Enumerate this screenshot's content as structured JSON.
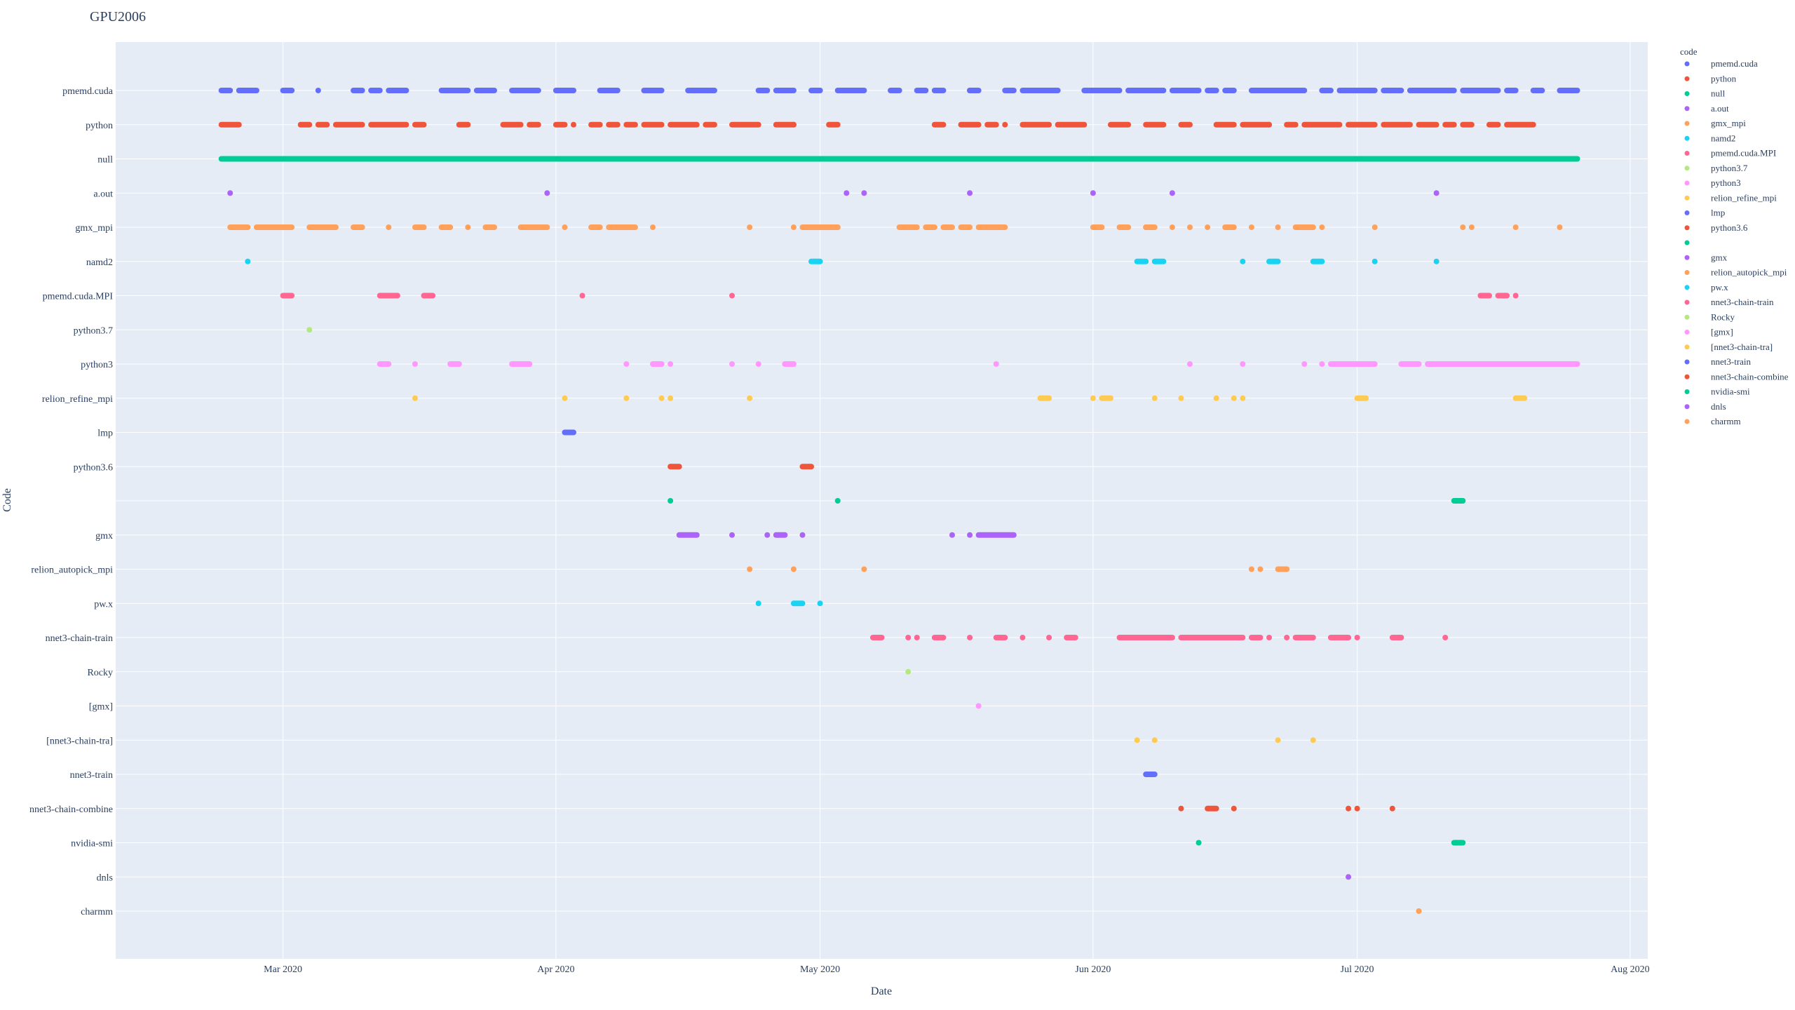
{
  "chart_data": {
    "type": "scatter",
    "title": "GPU2006",
    "xlabel": "Date",
    "ylabel": "Code",
    "legend_title": "code",
    "legend_position": "right",
    "grid": true,
    "x_range": [
      "2020-02-11",
      "2020-08-03"
    ],
    "x_ticks": [
      {
        "date": "2020-03-01",
        "label": "Mar 2020"
      },
      {
        "date": "2020-04-01",
        "label": "Apr 2020"
      },
      {
        "date": "2020-05-01",
        "label": "May 2020"
      },
      {
        "date": "2020-06-01",
        "label": "Jun 2020"
      },
      {
        "date": "2020-07-01",
        "label": "Jul 2020"
      },
      {
        "date": "2020-08-01",
        "label": "Aug 2020"
      }
    ],
    "categories": [
      "pmemd.cuda",
      "python",
      "null",
      "a.out",
      "gmx_mpi",
      "namd2",
      "pmemd.cuda.MPI",
      "python3.7",
      "python3",
      "relion_refine_mpi",
      "lmp",
      "python3.6",
      "",
      "gmx",
      "relion_autopick_mpi",
      "pw.x",
      "nnet3-chain-train",
      "Rocky",
      "[gmx]",
      "[nnet3-chain-tra]",
      "nnet3-train",
      "nnet3-chain-combine",
      "nvidia-smi",
      "dnls",
      "charmm"
    ],
    "series": [
      {
        "name": "pmemd.cuda",
        "color": "#636efa",
        "ranges": [
          [
            "2020-02-23",
            "2020-02-24"
          ],
          [
            "2020-02-25",
            "2020-02-27"
          ],
          [
            "2020-03-01",
            "2020-03-02"
          ],
          [
            "2020-03-09",
            "2020-03-10"
          ],
          [
            "2020-03-11",
            "2020-03-12"
          ],
          [
            "2020-03-13",
            "2020-03-15"
          ],
          [
            "2020-03-19",
            "2020-03-22"
          ],
          [
            "2020-03-23",
            "2020-03-25"
          ],
          [
            "2020-03-27",
            "2020-03-30"
          ],
          [
            "2020-04-01",
            "2020-04-03"
          ],
          [
            "2020-04-06",
            "2020-04-08"
          ],
          [
            "2020-04-11",
            "2020-04-13"
          ],
          [
            "2020-04-16",
            "2020-04-19"
          ],
          [
            "2020-04-24",
            "2020-04-25"
          ],
          [
            "2020-04-26",
            "2020-04-28"
          ],
          [
            "2020-04-30",
            "2020-05-01"
          ],
          [
            "2020-05-03",
            "2020-05-06"
          ],
          [
            "2020-05-09",
            "2020-05-10"
          ],
          [
            "2020-05-12",
            "2020-05-13"
          ],
          [
            "2020-05-14",
            "2020-05-15"
          ],
          [
            "2020-05-18",
            "2020-05-19"
          ],
          [
            "2020-05-22",
            "2020-05-23"
          ],
          [
            "2020-05-24",
            "2020-05-28"
          ],
          [
            "2020-05-31",
            "2020-06-04"
          ],
          [
            "2020-06-05",
            "2020-06-09"
          ],
          [
            "2020-06-10",
            "2020-06-13"
          ],
          [
            "2020-06-14",
            "2020-06-15"
          ],
          [
            "2020-06-16",
            "2020-06-17"
          ],
          [
            "2020-06-19",
            "2020-06-25"
          ],
          [
            "2020-06-27",
            "2020-06-28"
          ],
          [
            "2020-06-29",
            "2020-07-03"
          ],
          [
            "2020-07-04",
            "2020-07-06"
          ],
          [
            "2020-07-07",
            "2020-07-12"
          ],
          [
            "2020-07-13",
            "2020-07-17"
          ],
          [
            "2020-07-18",
            "2020-07-19"
          ],
          [
            "2020-07-21",
            "2020-07-22"
          ],
          [
            "2020-07-24",
            "2020-07-26"
          ]
        ],
        "points": [
          "2020-03-05",
          "2020-05-18"
        ]
      },
      {
        "name": "python",
        "color": "#EF553B",
        "ranges": [
          [
            "2020-02-23",
            "2020-02-25"
          ],
          [
            "2020-03-03",
            "2020-03-04"
          ],
          [
            "2020-03-05",
            "2020-03-06"
          ],
          [
            "2020-03-07",
            "2020-03-10"
          ],
          [
            "2020-03-11",
            "2020-03-15"
          ],
          [
            "2020-03-16",
            "2020-03-17"
          ],
          [
            "2020-03-21",
            "2020-03-22"
          ],
          [
            "2020-03-26",
            "2020-03-28"
          ],
          [
            "2020-03-29",
            "2020-03-30"
          ],
          [
            "2020-04-01",
            "2020-04-02"
          ],
          [
            "2020-04-05",
            "2020-04-06"
          ],
          [
            "2020-04-07",
            "2020-04-08"
          ],
          [
            "2020-04-09",
            "2020-04-10"
          ],
          [
            "2020-04-11",
            "2020-04-13"
          ],
          [
            "2020-04-14",
            "2020-04-17"
          ],
          [
            "2020-04-18",
            "2020-04-19"
          ],
          [
            "2020-04-21",
            "2020-04-24"
          ],
          [
            "2020-04-26",
            "2020-04-28"
          ],
          [
            "2020-05-02",
            "2020-05-03"
          ],
          [
            "2020-05-14",
            "2020-05-15"
          ],
          [
            "2020-05-17",
            "2020-05-19"
          ],
          [
            "2020-05-20",
            "2020-05-21"
          ],
          [
            "2020-05-24",
            "2020-05-27"
          ],
          [
            "2020-05-28",
            "2020-05-31"
          ],
          [
            "2020-06-03",
            "2020-06-05"
          ],
          [
            "2020-06-07",
            "2020-06-09"
          ],
          [
            "2020-06-11",
            "2020-06-12"
          ],
          [
            "2020-06-15",
            "2020-06-17"
          ],
          [
            "2020-06-18",
            "2020-06-21"
          ],
          [
            "2020-06-23",
            "2020-06-24"
          ],
          [
            "2020-06-25",
            "2020-06-29"
          ],
          [
            "2020-06-30",
            "2020-07-03"
          ],
          [
            "2020-07-04",
            "2020-07-07"
          ],
          [
            "2020-07-08",
            "2020-07-10"
          ],
          [
            "2020-07-11",
            "2020-07-12"
          ],
          [
            "2020-07-13",
            "2020-07-14"
          ],
          [
            "2020-07-16",
            "2020-07-17"
          ],
          [
            "2020-07-18",
            "2020-07-21"
          ]
        ],
        "points": [
          "2020-04-03",
          "2020-04-28",
          "2020-05-22",
          "2020-06-21"
        ]
      },
      {
        "name": "null",
        "color": "#00cc96",
        "ranges": [
          [
            "2020-02-23",
            "2020-07-26"
          ]
        ],
        "points": []
      },
      {
        "name": "a.out",
        "color": "#ab63fa",
        "ranges": [],
        "points": [
          "2020-02-24",
          "2020-03-31",
          "2020-05-04",
          "2020-05-06",
          "2020-05-18",
          "2020-06-01",
          "2020-06-10",
          "2020-07-10"
        ]
      },
      {
        "name": "gmx_mpi",
        "color": "#FFA15A",
        "ranges": [
          [
            "2020-02-24",
            "2020-02-26"
          ],
          [
            "2020-02-27",
            "2020-03-02"
          ],
          [
            "2020-03-04",
            "2020-03-07"
          ],
          [
            "2020-03-09",
            "2020-03-10"
          ],
          [
            "2020-03-16",
            "2020-03-17"
          ],
          [
            "2020-03-19",
            "2020-03-20"
          ],
          [
            "2020-03-24",
            "2020-03-25"
          ],
          [
            "2020-03-28",
            "2020-03-31"
          ],
          [
            "2020-04-05",
            "2020-04-06"
          ],
          [
            "2020-04-07",
            "2020-04-08"
          ],
          [
            "2020-04-08",
            "2020-04-10"
          ],
          [
            "2020-04-29",
            "2020-05-03"
          ],
          [
            "2020-05-10",
            "2020-05-12"
          ],
          [
            "2020-05-13",
            "2020-05-14"
          ],
          [
            "2020-05-15",
            "2020-05-16"
          ],
          [
            "2020-05-17",
            "2020-05-18"
          ],
          [
            "2020-05-19",
            "2020-05-22"
          ],
          [
            "2020-06-01",
            "2020-06-02"
          ],
          [
            "2020-06-04",
            "2020-06-05"
          ],
          [
            "2020-06-07",
            "2020-06-08"
          ],
          [
            "2020-06-16",
            "2020-06-17"
          ],
          [
            "2020-06-24",
            "2020-06-26"
          ]
        ],
        "points": [
          "2020-03-13",
          "2020-03-22",
          "2020-04-02",
          "2020-04-12",
          "2020-04-23",
          "2020-04-28",
          "2020-05-03",
          "2020-06-07",
          "2020-06-10",
          "2020-06-12",
          "2020-06-14",
          "2020-06-19",
          "2020-06-22",
          "2020-06-27",
          "2020-07-03",
          "2020-07-13",
          "2020-07-14",
          "2020-07-19",
          "2020-07-24"
        ]
      },
      {
        "name": "namd2",
        "color": "#19d3f3",
        "ranges": [
          [
            "2020-04-30",
            "2020-05-01"
          ],
          [
            "2020-06-06",
            "2020-06-07"
          ],
          [
            "2020-06-08",
            "2020-06-09"
          ],
          [
            "2020-06-21",
            "2020-06-22"
          ],
          [
            "2020-06-26",
            "2020-06-27"
          ]
        ],
        "points": [
          "2020-02-26",
          "2020-06-18",
          "2020-07-03",
          "2020-07-10"
        ]
      },
      {
        "name": "pmemd.cuda.MPI",
        "color": "#FF6692",
        "ranges": [
          [
            "2020-03-01",
            "2020-03-02"
          ],
          [
            "2020-03-12",
            "2020-03-14"
          ],
          [
            "2020-03-17",
            "2020-03-18"
          ],
          [
            "2020-07-15",
            "2020-07-16"
          ],
          [
            "2020-07-17",
            "2020-07-18"
          ]
        ],
        "points": [
          "2020-04-04",
          "2020-04-21",
          "2020-07-19"
        ]
      },
      {
        "name": "python3.7",
        "color": "#B6E880",
        "ranges": [],
        "points": [
          "2020-03-04"
        ]
      },
      {
        "name": "python3",
        "color": "#FF97FF",
        "ranges": [
          [
            "2020-03-12",
            "2020-03-13"
          ],
          [
            "2020-03-20",
            "2020-03-21"
          ],
          [
            "2020-03-27",
            "2020-03-29"
          ],
          [
            "2020-04-12",
            "2020-04-13"
          ],
          [
            "2020-04-27",
            "2020-04-28"
          ],
          [
            "2020-06-28",
            "2020-07-03"
          ],
          [
            "2020-07-06",
            "2020-07-08"
          ],
          [
            "2020-07-09",
            "2020-07-26"
          ]
        ],
        "points": [
          "2020-03-16",
          "2020-04-09",
          "2020-04-14",
          "2020-04-21",
          "2020-04-24",
          "2020-05-21",
          "2020-06-12",
          "2020-06-18",
          "2020-06-25",
          "2020-06-27"
        ]
      },
      {
        "name": "relion_refine_mpi",
        "color": "#FECB52",
        "ranges": [
          [
            "2020-05-26",
            "2020-05-27"
          ],
          [
            "2020-06-02",
            "2020-06-03"
          ],
          [
            "2020-07-01",
            "2020-07-02"
          ],
          [
            "2020-07-19",
            "2020-07-20"
          ]
        ],
        "points": [
          "2020-03-16",
          "2020-04-02",
          "2020-04-09",
          "2020-04-13",
          "2020-04-14",
          "2020-04-23",
          "2020-06-01",
          "2020-06-08",
          "2020-06-11",
          "2020-06-15",
          "2020-06-17",
          "2020-06-18"
        ]
      },
      {
        "name": "lmp",
        "color": "#636efa",
        "ranges": [
          [
            "2020-04-02",
            "2020-04-03"
          ]
        ],
        "points": []
      },
      {
        "name": "python3.6",
        "color": "#EF553B",
        "ranges": [
          [
            "2020-04-14",
            "2020-04-15"
          ],
          [
            "2020-04-29",
            "2020-04-30"
          ]
        ],
        "points": []
      },
      {
        "name": "",
        "color": "#00cc96",
        "ranges": [
          [
            "2020-07-12",
            "2020-07-13"
          ]
        ],
        "points": [
          "2020-04-14",
          "2020-05-03"
        ]
      },
      {
        "name": "gmx",
        "color": "#ab63fa",
        "ranges": [
          [
            "2020-04-15",
            "2020-04-17"
          ],
          [
            "2020-04-26",
            "2020-04-27"
          ],
          [
            "2020-05-19",
            "2020-05-23"
          ]
        ],
        "points": [
          "2020-04-21",
          "2020-04-25",
          "2020-04-29",
          "2020-05-16",
          "2020-05-18"
        ]
      },
      {
        "name": "relion_autopick_mpi",
        "color": "#FFA15A",
        "ranges": [
          [
            "2020-06-22",
            "2020-06-23"
          ]
        ],
        "points": [
          "2020-04-23",
          "2020-04-28",
          "2020-05-06",
          "2020-06-19",
          "2020-06-20"
        ]
      },
      {
        "name": "pw.x",
        "color": "#19d3f3",
        "ranges": [
          [
            "2020-04-28",
            "2020-04-29"
          ]
        ],
        "points": [
          "2020-04-24",
          "2020-05-01"
        ]
      },
      {
        "name": "nnet3-chain-train",
        "color": "#FF6692",
        "ranges": [
          [
            "2020-05-07",
            "2020-05-08"
          ],
          [
            "2020-05-14",
            "2020-05-15"
          ],
          [
            "2020-05-21",
            "2020-05-22"
          ],
          [
            "2020-05-29",
            "2020-05-30"
          ],
          [
            "2020-06-04",
            "2020-06-08"
          ],
          [
            "2020-06-08",
            "2020-06-10"
          ],
          [
            "2020-06-11",
            "2020-06-13"
          ],
          [
            "2020-06-13",
            "2020-06-18"
          ],
          [
            "2020-06-19",
            "2020-06-20"
          ],
          [
            "2020-06-24",
            "2020-06-26"
          ],
          [
            "2020-06-28",
            "2020-06-30"
          ],
          [
            "2020-07-05",
            "2020-07-06"
          ]
        ],
        "points": [
          "2020-05-11",
          "2020-05-12",
          "2020-05-18",
          "2020-05-24",
          "2020-05-27",
          "2020-06-21",
          "2020-06-23",
          "2020-07-01",
          "2020-07-11"
        ]
      },
      {
        "name": "Rocky",
        "color": "#B6E880",
        "ranges": [],
        "points": [
          "2020-05-11"
        ]
      },
      {
        "name": "[gmx]",
        "color": "#FF97FF",
        "ranges": [],
        "points": [
          "2020-05-19"
        ]
      },
      {
        "name": "[nnet3-chain-tra]",
        "color": "#FECB52",
        "ranges": [],
        "points": [
          "2020-06-06",
          "2020-06-08",
          "2020-06-22",
          "2020-06-26"
        ]
      },
      {
        "name": "nnet3-train",
        "color": "#636efa",
        "ranges": [
          [
            "2020-06-07",
            "2020-06-08"
          ]
        ],
        "points": []
      },
      {
        "name": "nnet3-chain-combine",
        "color": "#EF553B",
        "ranges": [
          [
            "2020-06-14",
            "2020-06-15"
          ]
        ],
        "points": [
          "2020-06-11",
          "2020-06-17",
          "2020-06-30",
          "2020-07-01",
          "2020-07-05"
        ]
      },
      {
        "name": "nvidia-smi",
        "color": "#00cc96",
        "ranges": [
          [
            "2020-07-12",
            "2020-07-13"
          ]
        ],
        "points": [
          "2020-06-13"
        ]
      },
      {
        "name": "dnls",
        "color": "#ab63fa",
        "ranges": [],
        "points": [
          "2020-06-30"
        ]
      },
      {
        "name": "charmm",
        "color": "#FFA15A",
        "ranges": [],
        "points": [
          "2020-07-08"
        ]
      }
    ]
  }
}
